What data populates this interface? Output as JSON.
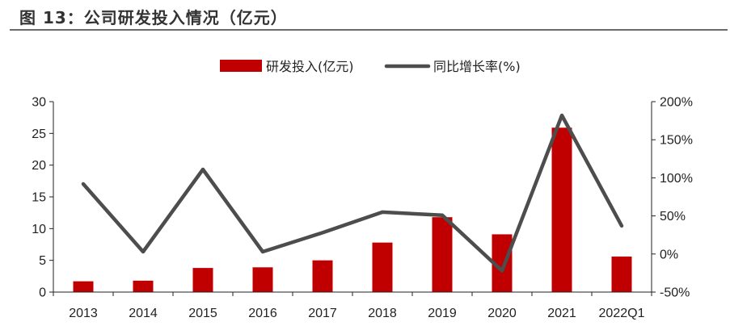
{
  "figure_title": "图 13：公司研发投入情况（亿元）",
  "colors": {
    "bar": "#C00000",
    "line": "#4D4D4D",
    "axis": "#222222"
  },
  "chart_data": {
    "type": "bar",
    "categories": [
      "2013",
      "2014",
      "2015",
      "2016",
      "2017",
      "2018",
      "2019",
      "2020",
      "2021",
      "2022Q1"
    ],
    "series": [
      {
        "name": "研发投入(亿元)",
        "type": "bar",
        "axis": "left",
        "values": [
          1.7,
          1.8,
          3.8,
          3.9,
          5.0,
          7.8,
          11.8,
          9.1,
          25.9,
          5.6
        ]
      },
      {
        "name": "同比增长率(%)",
        "type": "line",
        "axis": "right",
        "values": [
          92,
          3,
          111,
          3,
          28,
          55,
          51,
          -22,
          182,
          37
        ]
      }
    ],
    "y_left": {
      "ylim": [
        0,
        30
      ],
      "ticks": [
        "0",
        "5",
        "10",
        "15",
        "20",
        "25",
        "30"
      ],
      "tick_values": [
        0,
        5,
        10,
        15,
        20,
        25,
        30
      ]
    },
    "y_right": {
      "ylim": [
        -50,
        200
      ],
      "ticks": [
        "-50%",
        "0%",
        "50%",
        "100%",
        "150%",
        "200%"
      ],
      "tick_values": [
        -50,
        0,
        50,
        100,
        150,
        200
      ]
    },
    "legend": "top-center",
    "grid": false
  }
}
